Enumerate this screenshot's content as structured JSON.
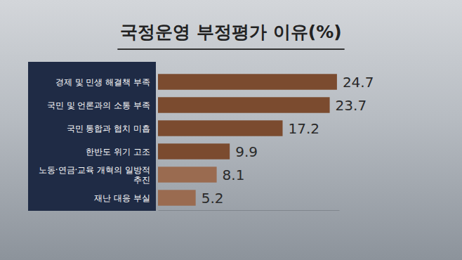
{
  "chart_data": {
    "type": "bar",
    "orientation": "horizontal",
    "title": "국정운영 부정평가 이유(%)",
    "categories": [
      "경제 및 민생 해결책 부족",
      "국민 및 언론과의 소통 부족",
      "국민 통합과 협치 미흡",
      "한반도 위기 고조",
      "노동·연금·교육 개혁의 일방적 추진",
      "재난 대응 부실"
    ],
    "values": [
      24.7,
      23.7,
      17.2,
      9.9,
      8.1,
      5.2
    ],
    "colors": [
      "#7b4b2f",
      "#7b4b2f",
      "#7b4b2f",
      "#7b4b2f",
      "#9a6b50",
      "#9a6b50"
    ],
    "xlim": [
      0,
      25
    ],
    "data_labels": true,
    "tick_labels": false,
    "grid": false
  }
}
